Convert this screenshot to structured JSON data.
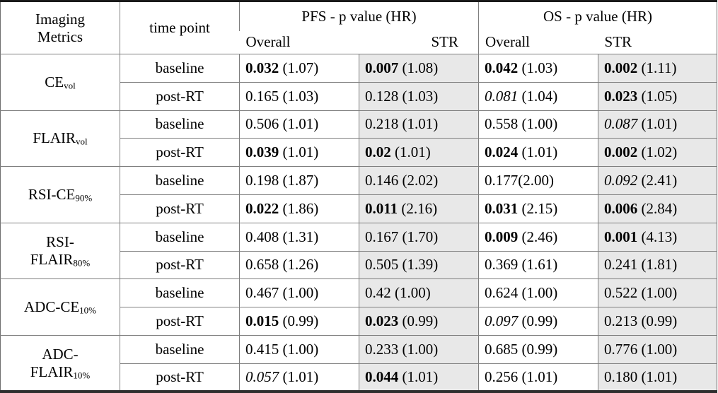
{
  "table": {
    "header": {
      "metrics_label_line1": "Imaging",
      "metrics_label_line2": "Metrics",
      "time_point": "time point",
      "groups": [
        {
          "title": "PFS - p value (HR)",
          "sub": [
            "Overall",
            "STR"
          ]
        },
        {
          "title": "OS - p value (HR)",
          "sub": [
            "Overall",
            "STR"
          ]
        }
      ]
    },
    "col_keys": [
      "pfs-overall",
      "pfs-str",
      "os-overall",
      "os-str"
    ],
    "shade_color": "#e8e8e8",
    "rows": [
      {
        "metric": {
          "pre": "",
          "main": "CE",
          "sub": "vol"
        },
        "timepoints": [
          {
            "label": "baseline",
            "cells": [
              {
                "p": "0.032",
                "hr": "(1.07)",
                "style": "bold"
              },
              {
                "p": "0.007",
                "hr": "(1.08)",
                "style": "bold"
              },
              {
                "p": "0.042",
                "hr": "(1.03)",
                "style": "bold"
              },
              {
                "p": "0.002",
                "hr": "(1.11)",
                "style": "bold"
              }
            ]
          },
          {
            "label": "post-RT",
            "cells": [
              {
                "p": "0.165",
                "hr": "(1.03)"
              },
              {
                "p": "0.128",
                "hr": "(1.03)"
              },
              {
                "p": "0.081",
                "hr": "(1.04)",
                "style": "italic"
              },
              {
                "p": "0.023",
                "hr": "(1.05)",
                "style": "bold"
              }
            ]
          }
        ]
      },
      {
        "metric": {
          "pre": "",
          "main": "FLAIR",
          "sub": "vol"
        },
        "timepoints": [
          {
            "label": "baseline",
            "cells": [
              {
                "p": "0.506",
                "hr": "(1.01)"
              },
              {
                "p": "0.218",
                "hr": "(1.01)"
              },
              {
                "p": "0.558",
                "hr": "(1.00)"
              },
              {
                "p": "0.087",
                "hr": "(1.01)",
                "style": "italic"
              }
            ]
          },
          {
            "label": "post-RT",
            "cells": [
              {
                "p": "0.039",
                "hr": "(1.01)",
                "style": "bold"
              },
              {
                "p": "0.02",
                "hr": "(1.01)",
                "style": "bold"
              },
              {
                "p": "0.024",
                "hr": "(1.01)",
                "style": "bold"
              },
              {
                "p": "0.002",
                "hr": "(1.02)",
                "style": "bold"
              }
            ]
          }
        ]
      },
      {
        "metric": {
          "pre": "",
          "main": "RSI-CE",
          "sub": "90%"
        },
        "timepoints": [
          {
            "label": "baseline",
            "cells": [
              {
                "p": "0.198",
                "hr": "(1.87)"
              },
              {
                "p": "0.146",
                "hr": "(2.02)"
              },
              {
                "p": "0.177",
                "hr": "(2.00)",
                "nospace": true
              },
              {
                "p": "0.092",
                "hr": "(2.41)",
                "style": "italic"
              }
            ]
          },
          {
            "label": "post-RT",
            "cells": [
              {
                "p": "0.022",
                "hr": "(1.86)",
                "style": "bold"
              },
              {
                "p": "0.011",
                "hr": "(2.16)",
                "style": "bold"
              },
              {
                "p": "0.031",
                "hr": "(2.15)",
                "style": "bold"
              },
              {
                "p": "0.006",
                "hr": "(2.84)",
                "style": "bold"
              }
            ]
          }
        ]
      },
      {
        "metric": {
          "pre": "RSI-",
          "main": "FLAIR",
          "sub": "80%"
        },
        "timepoints": [
          {
            "label": "baseline",
            "cells": [
              {
                "p": "0.408",
                "hr": "(1.31)"
              },
              {
                "p": "0.167",
                "hr": "(1.70)"
              },
              {
                "p": "0.009",
                "hr": "(2.46)",
                "style": "bold"
              },
              {
                "p": "0.001",
                "hr": "(4.13)",
                "style": "bold"
              }
            ]
          },
          {
            "label": "post-RT",
            "cells": [
              {
                "p": "0.658",
                "hr": "(1.26)"
              },
              {
                "p": "0.505",
                "hr": "(1.39)"
              },
              {
                "p": "0.369",
                "hr": "(1.61)"
              },
              {
                "p": "0.241",
                "hr": "(1.81)"
              }
            ]
          }
        ]
      },
      {
        "metric": {
          "pre": "",
          "main": "ADC-CE",
          "sub": "10%"
        },
        "timepoints": [
          {
            "label": "baseline",
            "cells": [
              {
                "p": "0.467",
                "hr": "(1.00)"
              },
              {
                "p": "0.42",
                "hr": "(1.00)"
              },
              {
                "p": "0.624",
                "hr": "(1.00)"
              },
              {
                "p": "0.522",
                "hr": "(1.00)"
              }
            ]
          },
          {
            "label": "post-RT",
            "cells": [
              {
                "p": "0.015",
                "hr": "(0.99)",
                "style": "bold"
              },
              {
                "p": "0.023",
                "hr": "(0.99)",
                "style": "bold"
              },
              {
                "p": "0.097",
                "hr": "(0.99)",
                "style": "italic"
              },
              {
                "p": "0.213",
                "hr": "(0.99)"
              }
            ]
          }
        ]
      },
      {
        "metric": {
          "pre": "ADC-",
          "main": "FLAIR",
          "sub": "10%"
        },
        "timepoints": [
          {
            "label": "baseline",
            "cells": [
              {
                "p": "0.415",
                "hr": "(1.00)"
              },
              {
                "p": "0.233",
                "hr": "(1.00)"
              },
              {
                "p": "0.685",
                "hr": "(0.99)"
              },
              {
                "p": "0.776",
                "hr": "(1.00)"
              }
            ]
          },
          {
            "label": "post-RT",
            "cells": [
              {
                "p": "0.057",
                "hr": "(1.01)",
                "style": "italic"
              },
              {
                "p": "0.044",
                "hr": "(1.01)",
                "style": "bold"
              },
              {
                "p": "0.256",
                "hr": "(1.01)"
              },
              {
                "p": "0.180",
                "hr": "(1.01)"
              }
            ]
          }
        ]
      }
    ]
  }
}
